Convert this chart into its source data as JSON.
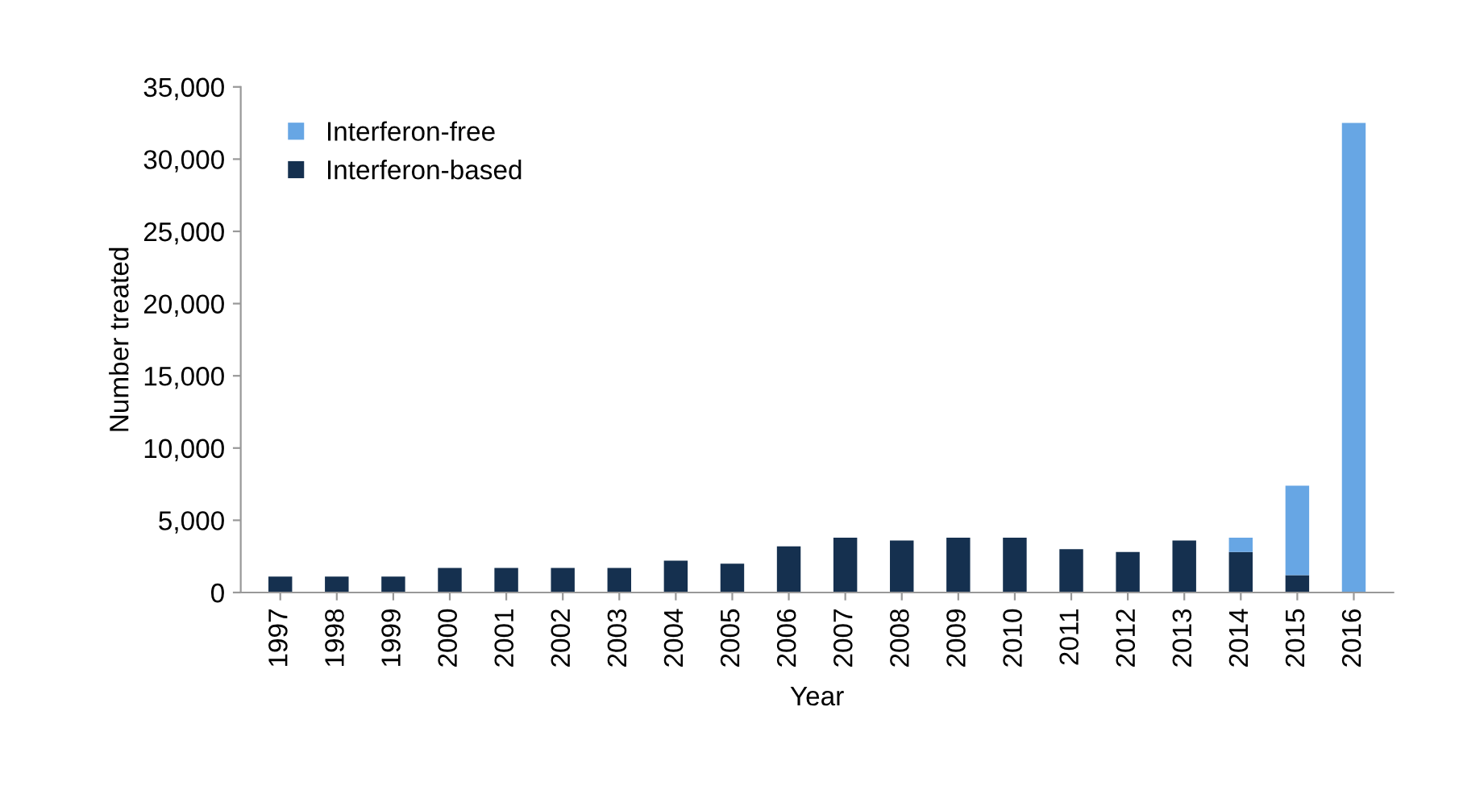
{
  "chart_data": {
    "type": "bar",
    "stacked": true,
    "xlabel": "Year",
    "ylabel": "Number treated",
    "categories": [
      "1997",
      "1998",
      "1999",
      "2000",
      "2001",
      "2002",
      "2003",
      "2004",
      "2005",
      "2006",
      "2007",
      "2008",
      "2009",
      "2010",
      "2011",
      "2012",
      "2013",
      "2014",
      "2015",
      "2016"
    ],
    "series": [
      {
        "name": "Interferon-based",
        "color": "#15304f",
        "values": [
          1100,
          1100,
          1100,
          1700,
          1700,
          1700,
          1700,
          2200,
          2000,
          3200,
          3800,
          3600,
          3800,
          3800,
          3000,
          2800,
          3600,
          2800,
          1200,
          0
        ]
      },
      {
        "name": "Interferon-free",
        "color": "#67a6e4",
        "values": [
          0,
          0,
          0,
          0,
          0,
          0,
          0,
          0,
          0,
          0,
          0,
          0,
          0,
          0,
          0,
          0,
          0,
          1000,
          6200,
          32500
        ]
      }
    ],
    "ylim": [
      0,
      35000
    ],
    "yticks": [
      {
        "value": 0,
        "label": "0"
      },
      {
        "value": 5000,
        "label": "5,000"
      },
      {
        "value": 10000,
        "label": "10,000"
      },
      {
        "value": 15000,
        "label": "15,000"
      },
      {
        "value": 20000,
        "label": "20,000"
      },
      {
        "value": 25000,
        "label": "25,000"
      },
      {
        "value": 30000,
        "label": "30,000"
      },
      {
        "value": 35000,
        "label": "35,000"
      }
    ],
    "legend": "top left",
    "grid": false
  }
}
